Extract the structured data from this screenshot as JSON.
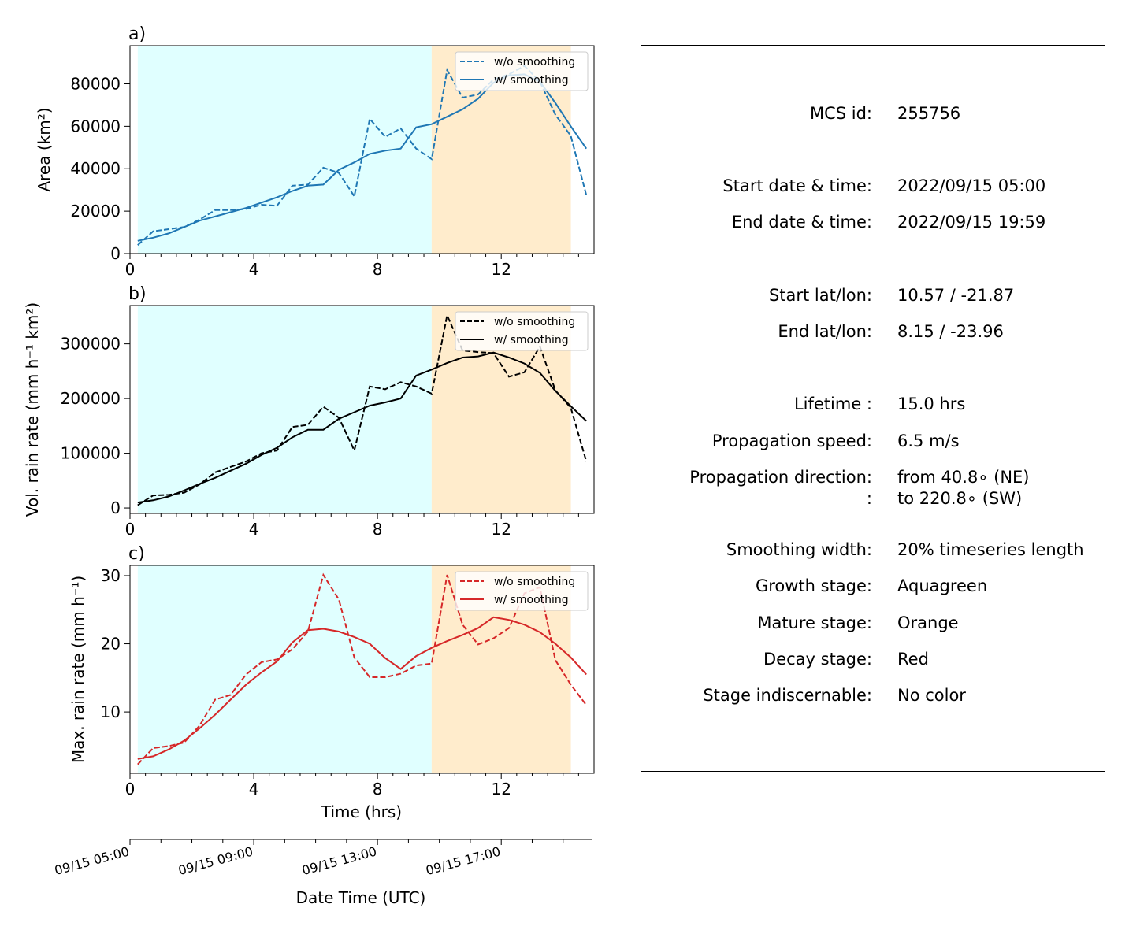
{
  "figure": {
    "x_axis_label": "Time (hrs)",
    "x_ticks": [
      0,
      4,
      8,
      12
    ],
    "time_axis": {
      "label": "Date Time (UTC)",
      "tick_labels": [
        "09/15 05:00",
        "09/15 09:00",
        "09/15 13:00",
        "09/15 17:00"
      ]
    },
    "stage_shading": {
      "growth": {
        "start_hr": 0.25,
        "end_hr": 9.75,
        "color": "#e0ffff"
      },
      "mature": {
        "start_hr": 9.75,
        "end_hr": 14.25,
        "color": "#ffeccc"
      }
    },
    "legend": {
      "dashed_label": "w/o smoothing",
      "solid_label": "w/ smoothing",
      "placement": "upper right"
    }
  },
  "chart_data": [
    {
      "type": "line",
      "panel_label": "a)",
      "ylabel": "Area  (km²)",
      "ylim": [
        0,
        98000
      ],
      "xlim": [
        0,
        15
      ],
      "yticks": [
        0,
        20000,
        40000,
        60000,
        80000
      ],
      "color": "#1f77b4",
      "x": [
        0.25,
        0.75,
        1.25,
        1.75,
        2.25,
        2.75,
        3.25,
        3.75,
        4.25,
        4.75,
        5.25,
        5.75,
        6.25,
        6.75,
        7.25,
        7.75,
        8.25,
        8.75,
        9.25,
        9.75,
        10.25,
        10.75,
        11.25,
        11.75,
        12.25,
        12.75,
        13.25,
        13.75,
        14.25,
        14.75
      ],
      "series": [
        {
          "name": "w/o smoothing",
          "style": "dashed",
          "values": [
            4000,
            10500,
            11500,
            12500,
            16000,
            20500,
            20500,
            21000,
            23000,
            22500,
            32000,
            32500,
            40500,
            38000,
            27000,
            63500,
            55000,
            59000,
            49500,
            44500,
            86500,
            73500,
            75000,
            82000,
            84500,
            88500,
            81000,
            65500,
            55500,
            27500
          ]
        },
        {
          "name": "w/ smoothing",
          "style": "solid",
          "values": [
            6000,
            7500,
            9500,
            12500,
            15500,
            17500,
            19500,
            21500,
            24000,
            26500,
            29500,
            32000,
            32500,
            39500,
            43000,
            47000,
            48500,
            49500,
            59500,
            61000,
            64500,
            68000,
            73000,
            80500,
            84000,
            84500,
            81000,
            71000,
            60000,
            49500
          ]
        }
      ]
    },
    {
      "type": "line",
      "panel_label": "b)",
      "ylabel": "Vol. rain rate (mm h⁻¹ km²)",
      "ylim": [
        -10000,
        370000
      ],
      "xlim": [
        0,
        15
      ],
      "yticks": [
        0,
        100000,
        200000,
        300000
      ],
      "color": "#000000",
      "x": [
        0.25,
        0.75,
        1.25,
        1.75,
        2.25,
        2.75,
        3.25,
        3.75,
        4.25,
        4.75,
        5.25,
        5.75,
        6.25,
        6.75,
        7.25,
        7.75,
        8.25,
        8.75,
        9.25,
        9.75,
        10.25,
        10.75,
        11.25,
        11.75,
        12.25,
        12.75,
        13.25,
        13.75,
        14.25,
        14.75
      ],
      "series": [
        {
          "name": "w/o smoothing",
          "style": "dashed",
          "values": [
            5000,
            23000,
            24000,
            28000,
            43000,
            65000,
            75000,
            85000,
            100000,
            105000,
            148000,
            152000,
            185000,
            165000,
            105000,
            222000,
            217000,
            230000,
            222000,
            209000,
            352000,
            288000,
            285000,
            283000,
            240000,
            248000,
            295000,
            215000,
            183000,
            85000
          ]
        },
        {
          "name": "w/ smoothing",
          "style": "solid",
          "values": [
            10000,
            14000,
            21000,
            32000,
            44000,
            55000,
            68000,
            81000,
            97000,
            110000,
            129000,
            143000,
            143000,
            163000,
            175000,
            187000,
            193000,
            200000,
            242000,
            253000,
            265000,
            275000,
            277000,
            284000,
            275000,
            264000,
            247000,
            214000,
            186000,
            159000
          ]
        }
      ]
    },
    {
      "type": "line",
      "panel_label": "c)",
      "ylabel": "Max. rain rate  (mm h⁻¹)",
      "xlabel": "Time (hrs)",
      "ylim": [
        1,
        31.5
      ],
      "xlim": [
        0,
        15
      ],
      "yticks": [
        10,
        20,
        30
      ],
      "color": "#d62728",
      "x": [
        0.25,
        0.75,
        1.25,
        1.75,
        2.25,
        2.75,
        3.25,
        3.75,
        4.25,
        4.75,
        5.25,
        5.75,
        6.25,
        6.75,
        7.25,
        7.75,
        8.25,
        8.75,
        9.25,
        9.75,
        10.25,
        10.75,
        11.25,
        11.75,
        12.25,
        12.75,
        13.25,
        13.75,
        14.25,
        14.75
      ],
      "series": [
        {
          "name": "w/o smoothing",
          "style": "dashed",
          "values": [
            2.3,
            4.7,
            5.0,
            5.5,
            8.0,
            11.8,
            12.5,
            15.5,
            17.3,
            17.7,
            19.2,
            21.8,
            30.1,
            26.5,
            18.0,
            15.1,
            15.1,
            15.6,
            16.8,
            17.1,
            30.1,
            22.8,
            19.9,
            20.8,
            22.3,
            27.4,
            28.3,
            17.6,
            14.0,
            11.0
          ]
        },
        {
          "name": "w/ smoothing",
          "style": "solid",
          "values": [
            3.1,
            3.5,
            4.5,
            5.8,
            7.6,
            9.6,
            11.8,
            14.0,
            15.8,
            17.4,
            20.2,
            22.0,
            22.2,
            21.8,
            21.0,
            20.0,
            17.9,
            16.3,
            18.2,
            19.4,
            20.4,
            21.3,
            22.3,
            23.9,
            23.5,
            22.8,
            21.7,
            20.0,
            18.0,
            15.5
          ]
        }
      ]
    }
  ],
  "info": {
    "rows": [
      {
        "label": "MCS id:",
        "value": "255756"
      },
      {
        "label": "Start date & time:",
        "value": "2022/09/15 05:00"
      },
      {
        "label": "End date & time:",
        "value": "2022/09/15 19:59"
      },
      {
        "label": "Start lat/lon:",
        "value": "10.57 / -21.87"
      },
      {
        "label": "End lat/lon:",
        "value": "8.15 / -23.96"
      },
      {
        "label": "Lifetime :",
        "value": "15.0 hrs"
      },
      {
        "label": "Propagation speed:",
        "value": "6.5 m/s"
      },
      {
        "label": "Propagation direction:",
        "value": "from  40.8∘ (NE)"
      },
      {
        "label": ":",
        "value": "to   220.8∘ (SW)"
      },
      {
        "label": "Smoothing width:",
        "value": "20% timeseries length"
      },
      {
        "label": "Growth stage:",
        "value": "Aquagreen"
      },
      {
        "label": "Mature stage:",
        "value": "Orange"
      },
      {
        "label": "Decay stage:",
        "value": "Red"
      },
      {
        "label": "Stage indiscernable:",
        "value": "No color"
      }
    ]
  }
}
